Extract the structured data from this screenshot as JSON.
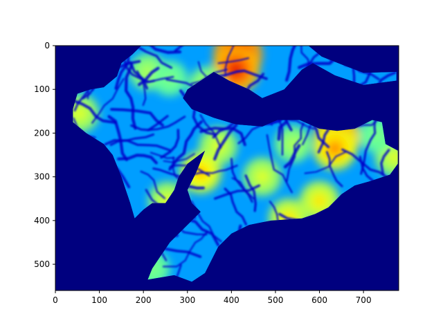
{
  "chart_data": {
    "type": "heatmap",
    "title": "",
    "xlabel": "",
    "ylabel": "",
    "colormap": "jet",
    "background_color": "#00007f",
    "xlim": [
      0,
      780
    ],
    "ylim": [
      560,
      0
    ],
    "y_axis_inverted": true,
    "grid": false,
    "legend": "none",
    "x_ticks": [
      0,
      100,
      200,
      300,
      400,
      500,
      600,
      700
    ],
    "x_tick_labels": [
      "0",
      "100",
      "200",
      "300",
      "400",
      "500",
      "600",
      "700"
    ],
    "y_ticks": [
      0,
      100,
      200,
      300,
      400,
      500
    ],
    "y_tick_labels": [
      "0",
      "100",
      "200",
      "300",
      "400",
      "500"
    ],
    "region_outline": [
      [
        195,
        0
      ],
      [
        575,
        0
      ],
      [
        605,
        25
      ],
      [
        655,
        45
      ],
      [
        700,
        62
      ],
      [
        775,
        60
      ],
      [
        775,
        80
      ],
      [
        700,
        90
      ],
      [
        635,
        68
      ],
      [
        585,
        40
      ],
      [
        560,
        55
      ],
      [
        520,
        100
      ],
      [
        470,
        120
      ],
      [
        440,
        100
      ],
      [
        395,
        80
      ],
      [
        360,
        60
      ],
      [
        330,
        80
      ],
      [
        300,
        100
      ],
      [
        290,
        120
      ],
      [
        310,
        145
      ],
      [
        360,
        165
      ],
      [
        410,
        180
      ],
      [
        470,
        185
      ],
      [
        505,
        170
      ],
      [
        555,
        170
      ],
      [
        600,
        190
      ],
      [
        640,
        195
      ],
      [
        680,
        190
      ],
      [
        720,
        170
      ],
      [
        742,
        175
      ],
      [
        750,
        225
      ],
      [
        778,
        240
      ],
      [
        778,
        270
      ],
      [
        760,
        295
      ],
      [
        715,
        310
      ],
      [
        680,
        320
      ],
      [
        650,
        340
      ],
      [
        620,
        370
      ],
      [
        590,
        385
      ],
      [
        560,
        395
      ],
      [
        490,
        400
      ],
      [
        440,
        410
      ],
      [
        400,
        430
      ],
      [
        370,
        460
      ],
      [
        340,
        520
      ],
      [
        310,
        540
      ],
      [
        270,
        525
      ],
      [
        240,
        530
      ],
      [
        210,
        535
      ],
      [
        220,
        510
      ],
      [
        240,
        480
      ],
      [
        260,
        450
      ],
      [
        290,
        420
      ],
      [
        310,
        400
      ],
      [
        330,
        380
      ],
      [
        310,
        360
      ],
      [
        300,
        330
      ],
      [
        320,
        290
      ],
      [
        340,
        240
      ],
      [
        300,
        270
      ],
      [
        280,
        300
      ],
      [
        270,
        330
      ],
      [
        250,
        360
      ],
      [
        220,
        360
      ],
      [
        200,
        375
      ],
      [
        180,
        395
      ],
      [
        170,
        360
      ],
      [
        160,
        330
      ],
      [
        150,
        300
      ],
      [
        130,
        250
      ],
      [
        110,
        225
      ],
      [
        70,
        200
      ],
      [
        40,
        175
      ],
      [
        40,
        145
      ],
      [
        50,
        110
      ],
      [
        80,
        100
      ],
      [
        110,
        95
      ],
      [
        140,
        70
      ],
      [
        150,
        40
      ],
      [
        175,
        20
      ]
    ],
    "high_value_points": [
      {
        "x": 415,
        "y": 20,
        "level": 0.95
      },
      {
        "x": 410,
        "y": 55,
        "level": 0.9
      },
      {
        "x": 640,
        "y": 210,
        "level": 0.85
      },
      {
        "x": 635,
        "y": 235,
        "level": 0.75
      },
      {
        "x": 345,
        "y": 90,
        "level": 0.55
      },
      {
        "x": 370,
        "y": 230,
        "level": 0.6
      },
      {
        "x": 330,
        "y": 290,
        "level": 0.7
      },
      {
        "x": 470,
        "y": 300,
        "level": 0.6
      },
      {
        "x": 600,
        "y": 355,
        "level": 0.65
      },
      {
        "x": 530,
        "y": 395,
        "level": 0.65
      },
      {
        "x": 255,
        "y": 355,
        "level": 0.6
      },
      {
        "x": 55,
        "y": 155,
        "level": 0.6
      },
      {
        "x": 770,
        "y": 255,
        "level": 0.6
      },
      {
        "x": 220,
        "y": 510,
        "level": 0.5
      },
      {
        "x": 210,
        "y": 60,
        "level": 0.55
      },
      {
        "x": 540,
        "y": 225,
        "level": 0.55
      },
      {
        "x": 260,
        "y": 75,
        "level": 0.5
      },
      {
        "x": 730,
        "y": 205,
        "level": 0.5
      }
    ]
  }
}
